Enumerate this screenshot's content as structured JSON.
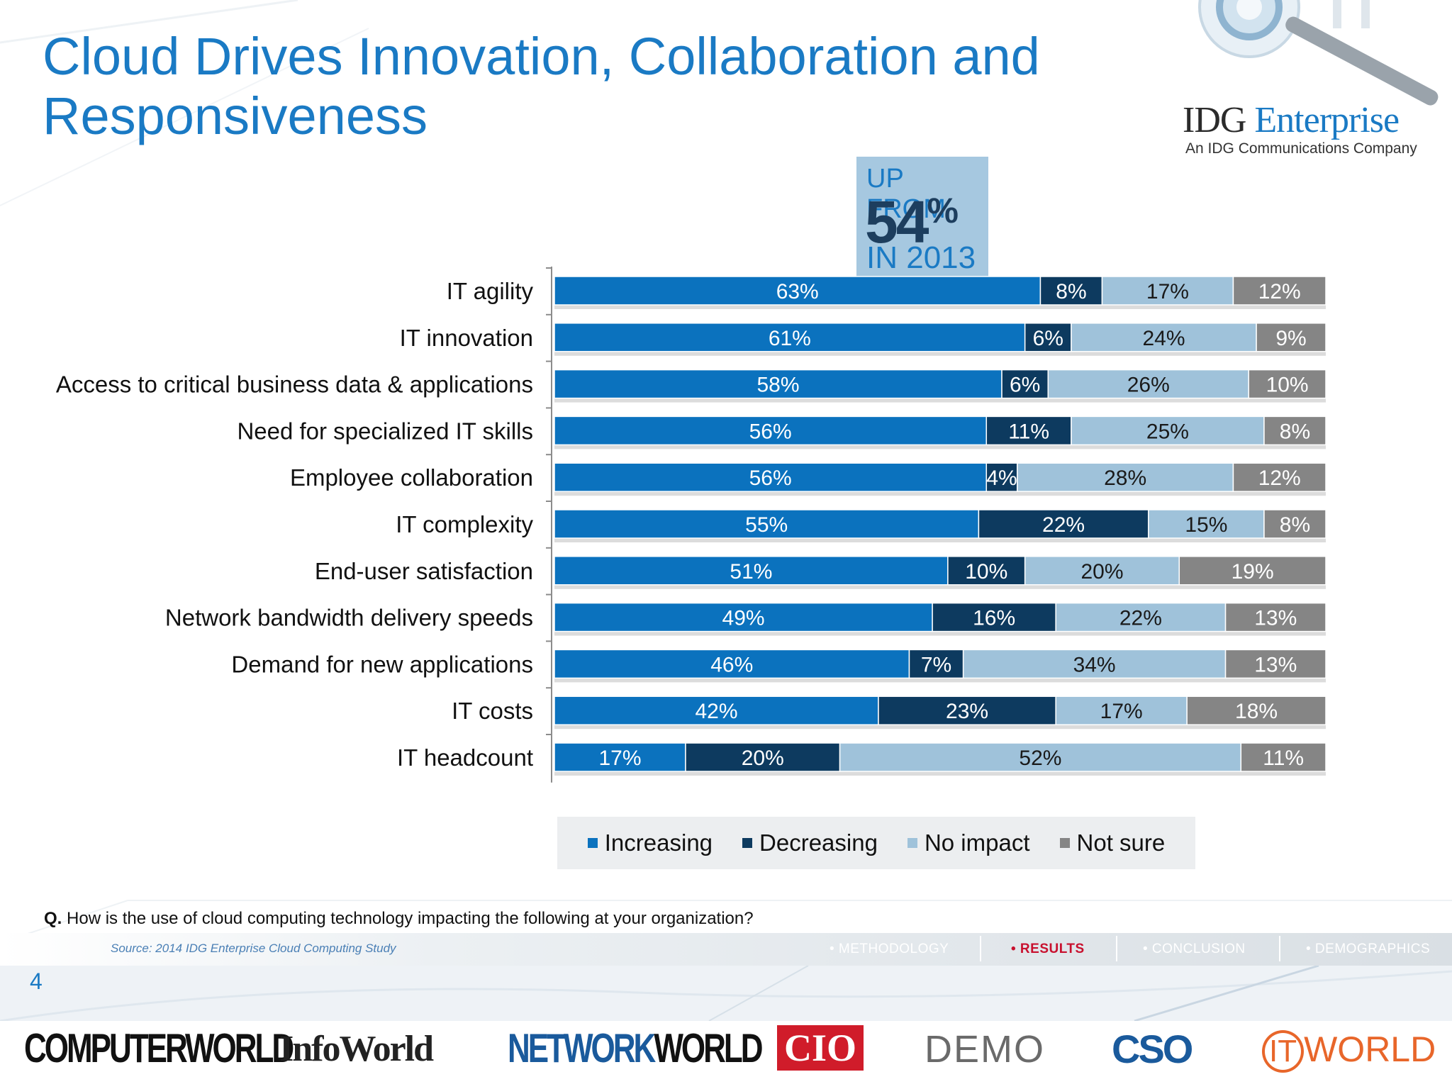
{
  "slide": {
    "title_line1": "Cloud Drives Innovation, Collaboration and",
    "title_line2": "Responsiveness",
    "page_number": "4"
  },
  "logo": {
    "name": "IDG Enterprise",
    "name_part1": "IDG",
    "name_part2": "Enterprise",
    "tagline": "An IDG Communications Company"
  },
  "callout": {
    "line1": "UP FROM",
    "value": "54",
    "unit": "%",
    "line3": "IN 2013"
  },
  "legend": {
    "items": [
      "Increasing",
      "Decreasing",
      "No impact",
      "Not sure"
    ]
  },
  "question": {
    "prefix": "Q.",
    "text": "How is the use of cloud computing technology impacting the following at your organization?"
  },
  "source": "Source: 2014 IDG Enterprise Cloud Computing Study",
  "nav": {
    "items": [
      "• METHODOLOGY",
      "• RESULTS",
      "• CONCLUSION",
      "• DEMOGRAPHICS"
    ],
    "active": "• RESULTS"
  },
  "brands": {
    "computerworld": "COMPUTERWORLD",
    "infoworld": "InfoWorld",
    "networkworld_a": "NETWORK",
    "networkworld_b": "WORLD",
    "cio": "CIO",
    "demo": "DEMO",
    "cso": "CSO",
    "itworld_a": "IT",
    "itworld_b": "WORLD"
  },
  "colors": {
    "increasing": "#0b72be",
    "decreasing": "#0d3a5f",
    "no_impact": "#9fc2da",
    "not_sure": "#858585",
    "title": "#1a7ac4"
  },
  "chart_data": {
    "type": "bar",
    "orientation": "horizontal",
    "stacked": true,
    "unit": "%",
    "categories": [
      "IT agility",
      "IT innovation",
      "Access to critical business data & applications",
      "Need for specialized IT skills",
      "Employee collaboration",
      "IT complexity",
      "End-user satisfaction",
      "Network bandwidth delivery speeds",
      "Demand for new applications",
      "IT costs",
      "IT headcount"
    ],
    "series": [
      {
        "name": "Increasing",
        "values": [
          63,
          61,
          58,
          56,
          56,
          55,
          51,
          49,
          46,
          42,
          17
        ]
      },
      {
        "name": "Decreasing",
        "values": [
          8,
          6,
          6,
          11,
          4,
          22,
          10,
          16,
          7,
          23,
          20
        ]
      },
      {
        "name": "No impact",
        "values": [
          17,
          24,
          26,
          25,
          28,
          15,
          20,
          22,
          34,
          17,
          52
        ]
      },
      {
        "name": "Not sure",
        "values": [
          12,
          9,
          10,
          8,
          12,
          8,
          19,
          13,
          13,
          18,
          11
        ]
      }
    ],
    "xlim": [
      0,
      100
    ],
    "legend_position": "bottom"
  }
}
